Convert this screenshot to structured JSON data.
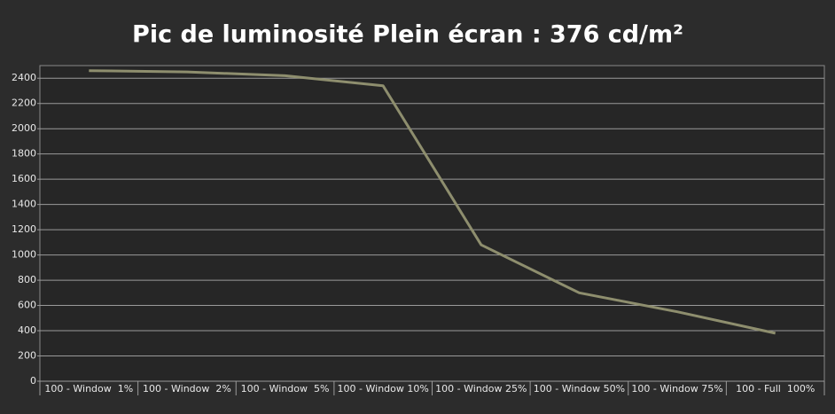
{
  "chart_data": {
    "type": "line",
    "title": "Pic de luminosité Plein écran : 376 cd/m²",
    "categories": [
      "100 - Window  1%",
      "100 - Window  2%",
      "100 - Window  5%",
      "100 - Window 10%",
      "100 - Window 25%",
      "100 - Window 50%",
      "100 - Window 75%",
      "100 - Full  100%"
    ],
    "series": [
      {
        "color": "#8e8e6e",
        "values": [
          2460,
          2450,
          2420,
          2340,
          1080,
          700,
          550,
          380
        ]
      }
    ],
    "ylim": [
      0,
      2500
    ],
    "yticks": [
      0,
      200,
      400,
      600,
      800,
      1000,
      1200,
      1400,
      1600,
      1800,
      2000,
      2200,
      2400
    ],
    "grid": true
  }
}
